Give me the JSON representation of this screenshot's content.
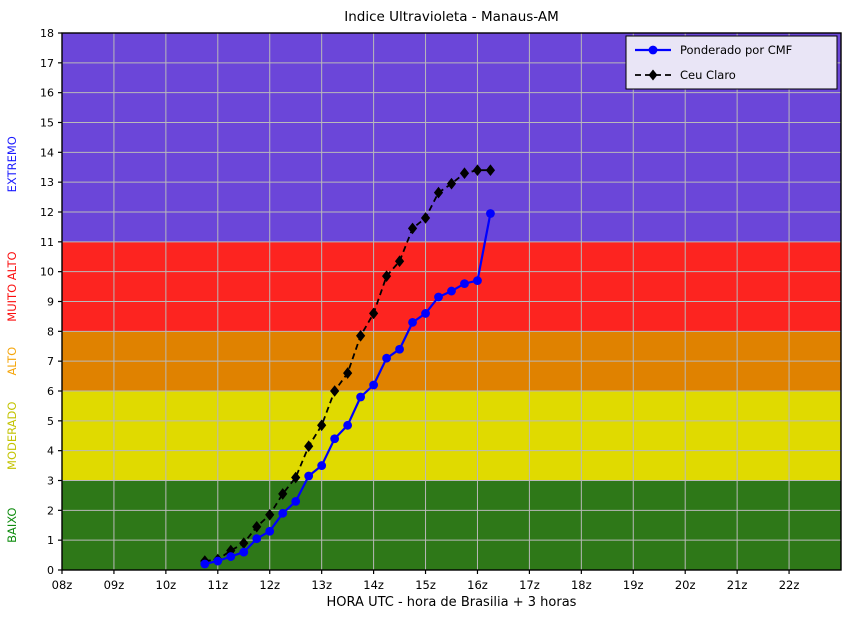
{
  "chart_data": {
    "type": "line",
    "title": "Indice Ultravioleta - Manaus-AM",
    "xlabel": "HORA UTC - hora de Brasilia + 3 horas",
    "x_axis": {
      "min_hour": 8,
      "max_hour": 23,
      "tick_hours": [
        8,
        9,
        10,
        11,
        12,
        13,
        14,
        15,
        16,
        17,
        18,
        19,
        20,
        21,
        22
      ],
      "tick_labels": [
        "08z",
        "09z",
        "10z",
        "11z",
        "12z",
        "13z",
        "14z",
        "15z",
        "16z",
        "17z",
        "18z",
        "19z",
        "20z",
        "21z",
        "22z"
      ]
    },
    "y_axis": {
      "min": 0,
      "max": 18,
      "tick_values": [
        0,
        1,
        2,
        3,
        4,
        5,
        6,
        7,
        8,
        9,
        10,
        11,
        12,
        13,
        14,
        15,
        16,
        17,
        18
      ]
    },
    "grid": {
      "on": true,
      "color": "#b9b9b9"
    },
    "bands": [
      {
        "label": "BAIXO",
        "from": 0,
        "to": 3,
        "color": "#2e7818",
        "label_color": "#0f8c0f",
        "label_value": 1.5
      },
      {
        "label": "MODERADO",
        "from": 3,
        "to": 6,
        "color": "#e0da00",
        "label_color": "#c3c300",
        "label_value": 4.5
      },
      {
        "label": "ALTO",
        "from": 6,
        "to": 8,
        "color": "#e08200",
        "label_color": "#f5a50a",
        "label_value": 7.0
      },
      {
        "label": "MUITO ALTO",
        "from": 8,
        "to": 11,
        "color": "#fd2420",
        "label_color": "#fb0f0f",
        "label_value": 9.5
      },
      {
        "label": "EXTREMO",
        "from": 11,
        "to": 18,
        "color": "#6b46d9",
        "label_color": "#1a1aff",
        "label_value": 13.6
      }
    ],
    "series": [
      {
        "name": "Ponderado por CMF",
        "color": "#0000ff",
        "line_style": "solid",
        "marker": "circle",
        "x": [
          10.75,
          11.0,
          11.25,
          11.5,
          11.75,
          12.0,
          12.25,
          12.5,
          12.75,
          13.0,
          13.25,
          13.5,
          13.75,
          14.0,
          14.25,
          14.5,
          14.75,
          15.0,
          15.25,
          15.5,
          15.75,
          16.0,
          16.25
        ],
        "y": [
          0.2,
          0.3,
          0.45,
          0.6,
          1.05,
          1.3,
          1.9,
          2.3,
          3.15,
          3.5,
          4.4,
          4.85,
          5.8,
          6.2,
          7.1,
          7.4,
          8.3,
          8.6,
          9.15,
          9.35,
          9.6,
          9.7,
          11.95
        ]
      },
      {
        "name": "Ceu Claro",
        "color": "#000000",
        "line_style": "dashed",
        "marker": "diamond",
        "x": [
          10.75,
          11.0,
          11.25,
          11.5,
          11.75,
          12.0,
          12.25,
          12.5,
          12.75,
          13.0,
          13.25,
          13.5,
          13.75,
          14.0,
          14.25,
          14.5,
          14.75,
          15.0,
          15.25,
          15.5,
          15.75,
          16.0,
          16.25
        ],
        "y": [
          0.3,
          0.35,
          0.65,
          0.9,
          1.45,
          1.85,
          2.55,
          3.1,
          4.15,
          4.85,
          6.0,
          6.6,
          7.85,
          8.6,
          9.85,
          10.35,
          11.45,
          11.8,
          12.65,
          12.95,
          13.3,
          13.4,
          13.4
        ]
      }
    ],
    "legend": {
      "position": "top-right",
      "background": "#e9e5f6",
      "border": "#000000",
      "entries": [
        "Ponderado por CMF",
        "Ceu Claro"
      ]
    }
  }
}
